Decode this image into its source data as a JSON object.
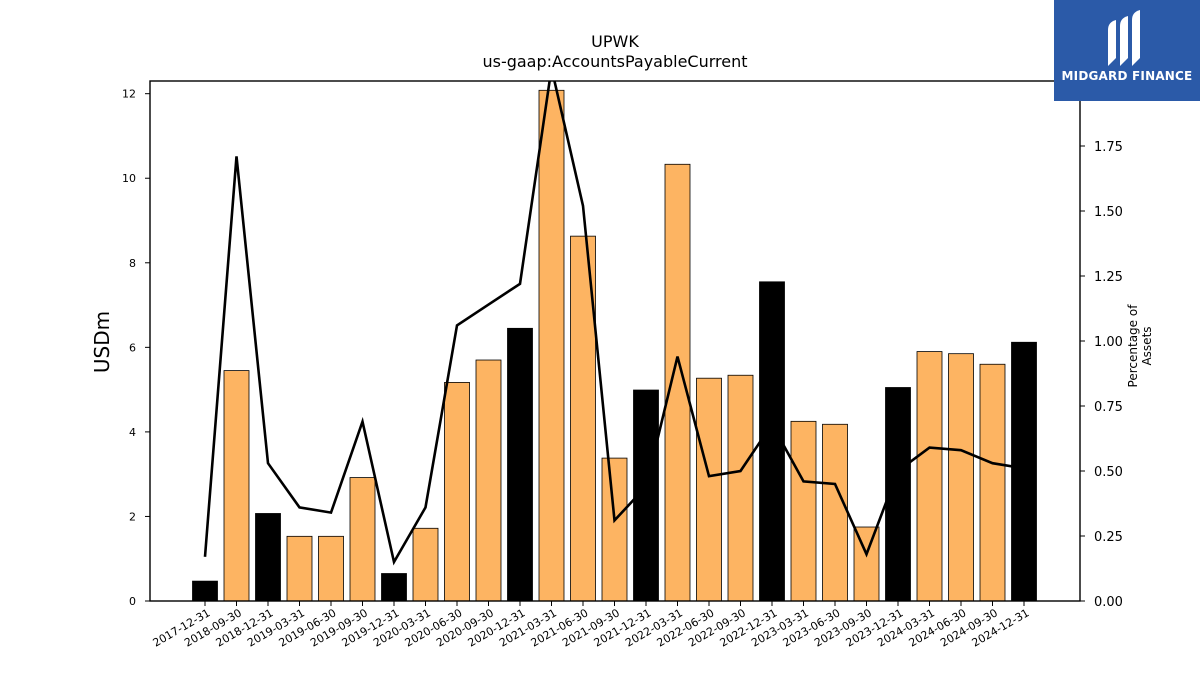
{
  "chart_data": {
    "type": "bar",
    "title": "UPWK",
    "subtitle": "us-gaap:AccountsPayableCurrent",
    "ylabel": "USDm",
    "ylabel_right": "Percentage of Assets",
    "ylim": [
      0,
      12.3
    ],
    "ylim_right": [
      0,
      2.0
    ],
    "yticks": [
      0,
      2,
      4,
      6,
      8,
      10,
      12
    ],
    "yticks_right": [
      "0.00",
      "0.25",
      "0.50",
      "0.75",
      "1.00",
      "1.25",
      "1.50",
      "1.75"
    ],
    "yticks_right_values": [
      0,
      0.25,
      0.5,
      0.75,
      1.0,
      1.25,
      1.5,
      1.75
    ],
    "categories": [
      "2017-12-31",
      "2018-09-30",
      "2018-12-31",
      "2019-03-31",
      "2019-06-30",
      "2019-09-30",
      "2019-12-31",
      "2020-03-31",
      "2020-06-30",
      "2020-09-30",
      "2020-12-31",
      "2021-03-31",
      "2021-06-30",
      "2021-09-30",
      "2021-12-31",
      "2022-03-31",
      "2022-06-30",
      "2022-09-30",
      "2022-12-31",
      "2023-03-31",
      "2023-06-30",
      "2023-09-30",
      "2023-12-31",
      "2024-03-31",
      "2024-06-30",
      "2024-09-30",
      "2024-12-31"
    ],
    "series": [
      {
        "type": "bar",
        "values": [
          0.47,
          5.45,
          2.07,
          1.53,
          1.53,
          2.92,
          0.65,
          1.72,
          5.17,
          5.7,
          6.45,
          12.08,
          8.63,
          3.38,
          4.99,
          10.33,
          5.27,
          5.34,
          7.55,
          4.25,
          4.18,
          1.75,
          5.05,
          5.9,
          5.85,
          5.6,
          6.12
        ],
        "colors": [
          "#000000",
          "#fdb462",
          "#000000",
          "#fdb462",
          "#fdb462",
          "#fdb462",
          "#000000",
          "#fdb462",
          "#fdb462",
          "#fdb462",
          "#000000",
          "#fdb462",
          "#fdb462",
          "#fdb462",
          "#000000",
          "#fdb462",
          "#fdb462",
          "#fdb462",
          "#000000",
          "#fdb462",
          "#fdb462",
          "#fdb462",
          "#000000",
          "#fdb462",
          "#fdb462",
          "#fdb462",
          "#000000"
        ]
      },
      {
        "type": "line",
        "axis": "right",
        "color": "#000000",
        "values": [
          0.17,
          1.71,
          0.53,
          0.36,
          0.34,
          0.69,
          0.15,
          0.36,
          1.06,
          1.14,
          1.22,
          2.05,
          1.52,
          0.31,
          0.44,
          0.94,
          0.48,
          0.5,
          0.68,
          0.46,
          0.45,
          0.18,
          0.5,
          0.59,
          0.58,
          0.53,
          0.51
        ]
      }
    ],
    "grid": false
  },
  "logo": {
    "text": "MIDGARD FINANCE"
  }
}
